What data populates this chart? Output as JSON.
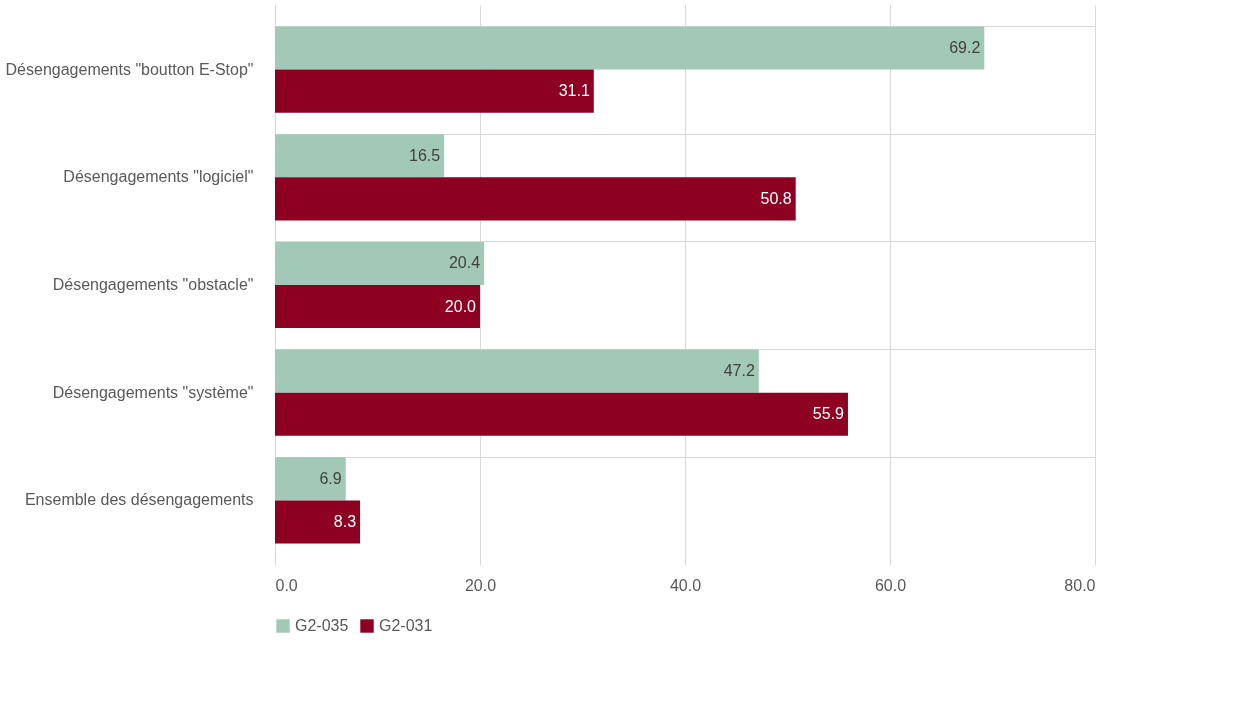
{
  "chart_data": {
    "type": "bar",
    "orientation": "horizontal",
    "categories": [
      "Désengagements \"boutton E-Stop\"",
      "Désengagements \"logiciel\"",
      "Désengagements \"obstacle\"",
      "Désengagements \"système\"",
      "Ensemble des désengagements"
    ],
    "series": [
      {
        "name": "G2-035",
        "color": "#a2c9b8",
        "values": [
          69.2,
          16.5,
          20.4,
          47.2,
          6.9
        ]
      },
      {
        "name": "G2-031",
        "color": "#8e0022",
        "values": [
          31.1,
          50.8,
          20.0,
          55.9,
          8.3
        ]
      }
    ],
    "xlim": [
      0,
      80
    ],
    "xticks": [
      {
        "value": 0,
        "label": "0.0"
      },
      {
        "value": 20,
        "label": "20.0"
      },
      {
        "value": 40,
        "label": "40.0"
      },
      {
        "value": 60,
        "label": "60.0"
      },
      {
        "value": 80,
        "label": "80.0"
      }
    ],
    "value_labels": [
      [
        "69.2",
        "16.5",
        "20.4",
        "47.2",
        "6.9"
      ],
      [
        "31.1",
        "50.8",
        "20.0",
        "55.9",
        "8.3"
      ]
    ],
    "grid": true,
    "legend": "bottom"
  }
}
